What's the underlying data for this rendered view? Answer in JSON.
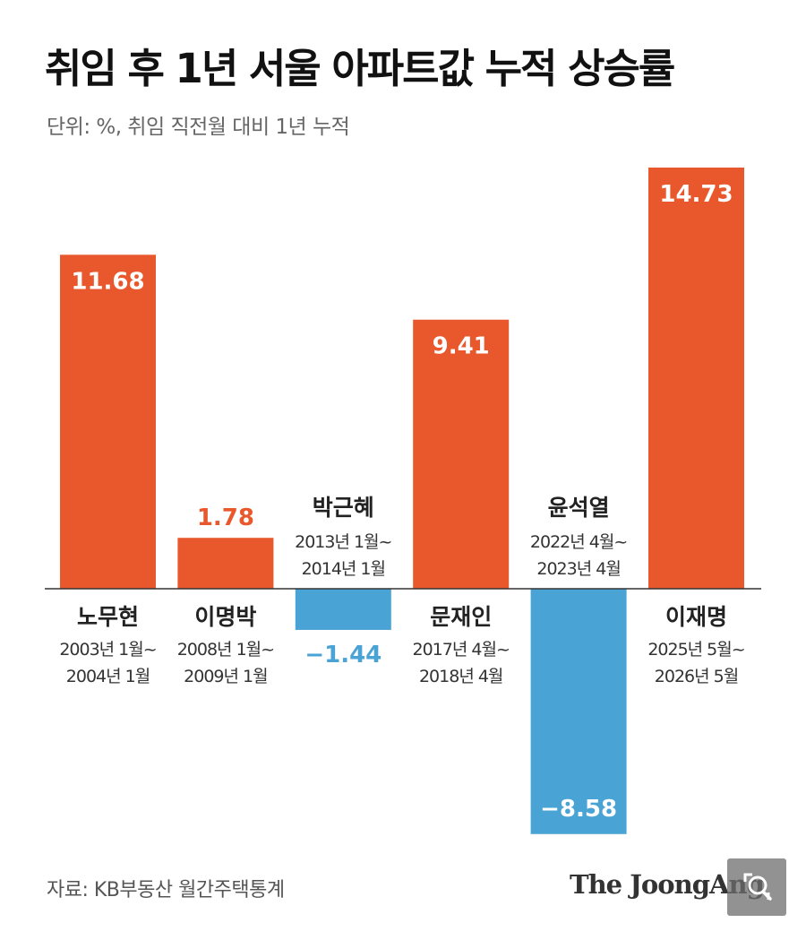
{
  "title": "취임 후 1년 서울 아파트값 누적 상승률",
  "subtitle": "단위: %, 취임 직전월 대비 1년 누적",
  "source": "자료: KB부동산 월간주택통계",
  "brand": "The JoongAng",
  "zoom_icon": "zoom-search-icon",
  "colors": {
    "positive": "#e8582c",
    "negative": "#4aa3d5",
    "axis": "#333333",
    "label_text": "#222222",
    "period_text": "#333333"
  },
  "chart_data": {
    "type": "bar",
    "title": "취임 후 1년 서울 아파트값 누적 상승률",
    "subtitle": "단위: %, 취임 직전월 대비 1년 누적",
    "ylabel": "",
    "xlabel": "",
    "grid": false,
    "legend": "none",
    "categories": [
      "노무현",
      "이명박",
      "박근혜",
      "문재인",
      "윤석열",
      "이재명"
    ],
    "periods": [
      [
        "2003년 1월~",
        "2004년 1월"
      ],
      [
        "2008년 1월~",
        "2009년 1월"
      ],
      [
        "2013년 1월~",
        "2014년 1월"
      ],
      [
        "2017년 4월~",
        "2018년 4월"
      ],
      [
        "2022년 4월~",
        "2023년 4월"
      ],
      [
        "2025년 5월~",
        "2026년 5월"
      ]
    ],
    "values": [
      11.68,
      1.78,
      -1.44,
      9.41,
      -8.58,
      14.73
    ],
    "value_labels": [
      "11.68",
      "1.78",
      "−1.44",
      "9.41",
      "−8.58",
      "14.73"
    ],
    "ylim": [
      -8.58,
      14.73
    ]
  }
}
